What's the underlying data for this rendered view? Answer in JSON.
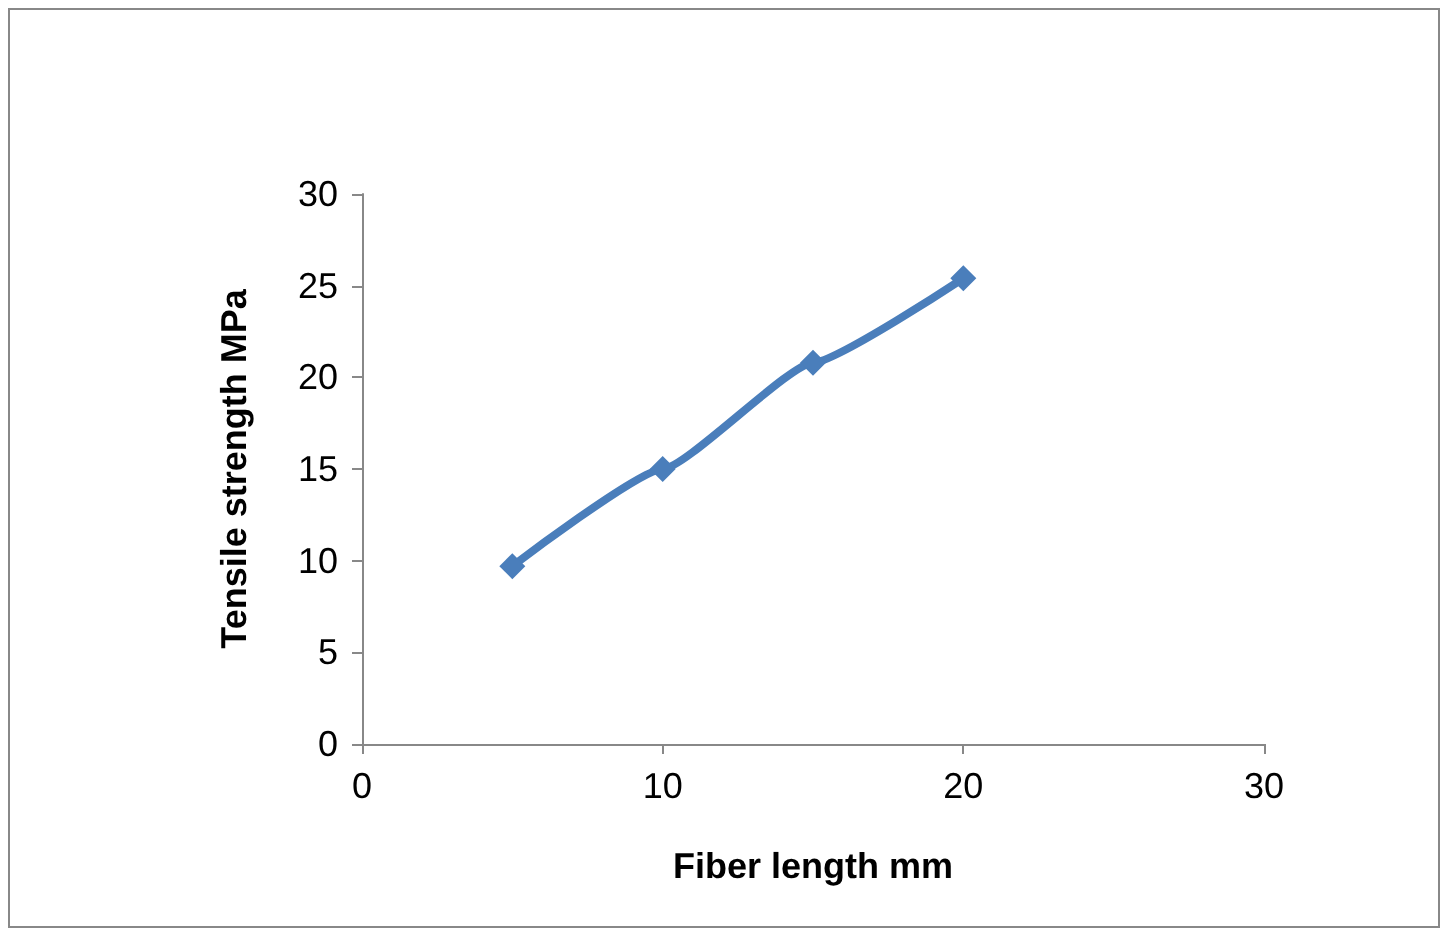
{
  "chart_data": {
    "type": "line",
    "xlabel": "Fiber length mm",
    "ylabel": "Tensile strength MPa",
    "x": [
      5,
      10,
      15,
      20
    ],
    "series": [
      {
        "color": "#4a7ebb",
        "values": [
          9.7,
          15,
          20.8,
          25.4
        ]
      }
    ],
    "xlim": [
      0,
      30
    ],
    "xticks": [
      0,
      10,
      20,
      30
    ],
    "ylim": [
      0,
      30
    ],
    "yticks": [
      0,
      5,
      10,
      15,
      20,
      25,
      30
    ],
    "grid": false,
    "marker": "diamond",
    "line_style": "solid"
  }
}
